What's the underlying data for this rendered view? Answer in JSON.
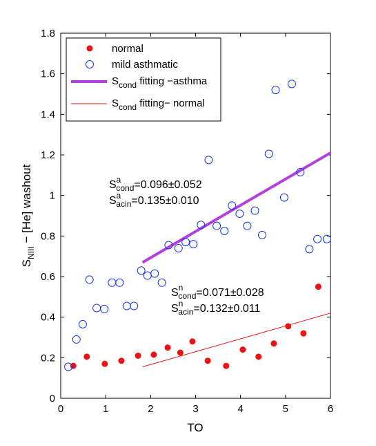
{
  "colors": {
    "normal": "#ee1111",
    "asthmatic": "#1133ee",
    "fit_asthma": "#b43fe0",
    "fit_normal": "#ee1111"
  },
  "chart_data": {
    "type": "scatter",
    "xlabel": "TO",
    "ylabel_prefix": "S",
    "ylabel_sub": "NIII",
    "ylabel_suffix": " − [He] washout",
    "xlim": [
      0,
      6
    ],
    "ylim": [
      0,
      1.8
    ],
    "xticks": [
      "0",
      "1",
      "2",
      "3",
      "4",
      "5",
      "6"
    ],
    "yticks": [
      "0",
      "0.2",
      "0.4",
      "0.6",
      "0.8",
      "1",
      "1.2",
      "1.4",
      "1.6",
      "1.8"
    ],
    "grid": false,
    "legend_position": "top-left",
    "legend": [
      {
        "label_main": "normal",
        "label_sub": "",
        "label_tail": ""
      },
      {
        "label_main": "mild asthmatic",
        "label_sub": "",
        "label_tail": ""
      },
      {
        "label_main": "S",
        "label_sub": "cond",
        "label_tail": " fitting −asthma"
      },
      {
        "label_main": "S",
        "label_sub": "cond",
        "label_tail": " fitting− normal"
      }
    ],
    "series": [
      {
        "name": "normal",
        "marker": "filled-circle",
        "points": [
          [
            0.28,
            0.16
          ],
          [
            0.58,
            0.205
          ],
          [
            0.98,
            0.17
          ],
          [
            1.35,
            0.185
          ],
          [
            1.72,
            0.21
          ],
          [
            2.07,
            0.215
          ],
          [
            2.38,
            0.25
          ],
          [
            2.66,
            0.225
          ],
          [
            2.93,
            0.28
          ],
          [
            3.27,
            0.185
          ],
          [
            3.68,
            0.16
          ],
          [
            4.05,
            0.24
          ],
          [
            4.4,
            0.205
          ],
          [
            4.74,
            0.27
          ],
          [
            5.06,
            0.355
          ],
          [
            5.4,
            0.32
          ],
          [
            5.73,
            0.55
          ]
        ]
      },
      {
        "name": "mild asthmatic",
        "marker": "open-circle",
        "points": [
          [
            0.17,
            0.155
          ],
          [
            0.35,
            0.29
          ],
          [
            0.49,
            0.365
          ],
          [
            0.64,
            0.585
          ],
          [
            0.8,
            0.445
          ],
          [
            0.97,
            0.44
          ],
          [
            1.14,
            0.57
          ],
          [
            1.31,
            0.57
          ],
          [
            1.47,
            0.455
          ],
          [
            1.63,
            0.455
          ],
          [
            1.79,
            0.63
          ],
          [
            1.93,
            0.605
          ],
          [
            2.09,
            0.615
          ],
          [
            2.25,
            0.57
          ],
          [
            2.4,
            0.755
          ],
          [
            2.62,
            0.74
          ],
          [
            2.78,
            0.77
          ],
          [
            2.95,
            0.76
          ],
          [
            3.12,
            0.855
          ],
          [
            3.29,
            1.175
          ],
          [
            3.47,
            0.85
          ],
          [
            3.64,
            0.825
          ],
          [
            3.81,
            0.95
          ],
          [
            3.98,
            0.91
          ],
          [
            4.15,
            0.85
          ],
          [
            4.32,
            0.925
          ],
          [
            4.48,
            0.805
          ],
          [
            4.63,
            1.205
          ],
          [
            4.78,
            1.52
          ],
          [
            4.97,
            0.99
          ],
          [
            5.14,
            1.55
          ],
          [
            5.33,
            1.115
          ],
          [
            5.53,
            0.735
          ],
          [
            5.71,
            0.785
          ],
          [
            5.92,
            0.785
          ]
        ]
      }
    ],
    "fits": [
      {
        "name": "fit_asthma",
        "x": [
          1.82,
          6.0
        ],
        "y": [
          0.67,
          1.21
        ]
      },
      {
        "name": "fit_normal",
        "x": [
          1.82,
          6.0
        ],
        "y": [
          0.155,
          0.42
        ]
      }
    ],
    "annotations": [
      {
        "id": "a_cond",
        "base": "S",
        "sup": "a",
        "sub": "cond",
        "text": "=0.096±0.052"
      },
      {
        "id": "a_acin",
        "base": "S",
        "sup": "a",
        "sub": "acin",
        "text": "=0.135±0.010"
      },
      {
        "id": "n_cond",
        "base": "S",
        "sup": "n",
        "sub": "cond",
        "text": "=0.071±0.028"
      },
      {
        "id": "n_acin",
        "base": "S",
        "sup": "n",
        "sub": "acin",
        "text": "=0.132±0.011"
      }
    ]
  }
}
